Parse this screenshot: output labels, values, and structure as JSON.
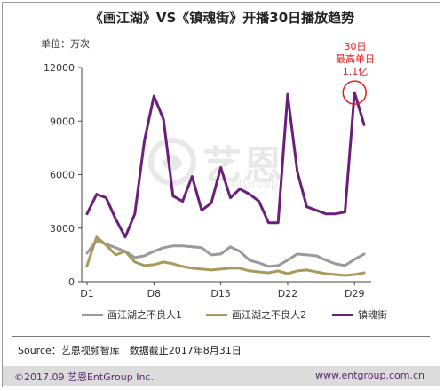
{
  "header": {
    "title": "《画江湖》VS《镇魂街》开播30日播放趋势"
  },
  "unit_label": "单位：万次",
  "annotation": {
    "line1": "30日",
    "line2": "最高单日",
    "line3": "1.1亿"
  },
  "source": "Source：艺恩视频智库　数据截止2017年8月31日",
  "footer": {
    "copyright": "©2017.09  艺恩EntGroup Inc.",
    "website": "www.entgroup.com.cn"
  },
  "watermark": {
    "text": "艺恩",
    "sub": "EntGroup"
  },
  "colors": {
    "series1": "#9a9a9a",
    "series2": "#a89a5e",
    "series3": "#6b1f7a",
    "highlight": "#e02020",
    "axis": "#444444"
  },
  "chart_data": {
    "type": "line",
    "title": "《画江湖》VS《镇魂街》开播30日播放趋势",
    "ylabel": "单位：万次",
    "xlabel": "",
    "ylim": [
      0,
      12000
    ],
    "yticks": [
      0,
      3000,
      6000,
      9000,
      12000
    ],
    "xticks": [
      {
        "day": 1,
        "label": "D1"
      },
      {
        "day": 8,
        "label": "D8"
      },
      {
        "day": 15,
        "label": "D15"
      },
      {
        "day": 22,
        "label": "D22"
      },
      {
        "day": 29,
        "label": "D29"
      }
    ],
    "x": [
      1,
      2,
      3,
      4,
      5,
      6,
      7,
      8,
      9,
      10,
      11,
      12,
      13,
      14,
      15,
      16,
      17,
      18,
      19,
      20,
      21,
      22,
      23,
      24,
      25,
      26,
      27,
      28,
      29,
      30
    ],
    "grid": false,
    "legend_position": "bottom",
    "series": [
      {
        "name": "画江湖之不良人1",
        "color": "#9a9a9a",
        "values": [
          1600,
          2300,
          2100,
          1900,
          1700,
          1350,
          1450,
          1700,
          1900,
          2000,
          2000,
          1950,
          1900,
          1500,
          1550,
          1950,
          1700,
          1200,
          1050,
          850,
          900,
          1200,
          1550,
          1500,
          1450,
          1200,
          1000,
          900,
          1250,
          1550
        ]
      },
      {
        "name": "画江湖之不良人2",
        "color": "#a89a5e",
        "values": [
          900,
          2500,
          2050,
          1500,
          1700,
          1100,
          900,
          950,
          1100,
          1000,
          850,
          750,
          700,
          650,
          700,
          750,
          750,
          600,
          550,
          500,
          600,
          450,
          600,
          650,
          550,
          450,
          400,
          350,
          400,
          500
        ]
      },
      {
        "name": "镇魂街",
        "color": "#6b1f7a",
        "values": [
          3800,
          4900,
          4700,
          3500,
          2500,
          3800,
          7900,
          10400,
          9100,
          4800,
          4500,
          5900,
          4000,
          4400,
          6400,
          4700,
          5200,
          4900,
          4500,
          3300,
          3300,
          10500,
          6200,
          4200,
          4000,
          3800,
          3800,
          3900,
          10600,
          8800
        ]
      }
    ],
    "annotations": [
      {
        "series": "镇魂街",
        "day": 29,
        "text": [
          "30日",
          "最高单日",
          "1.1亿"
        ]
      }
    ]
  }
}
